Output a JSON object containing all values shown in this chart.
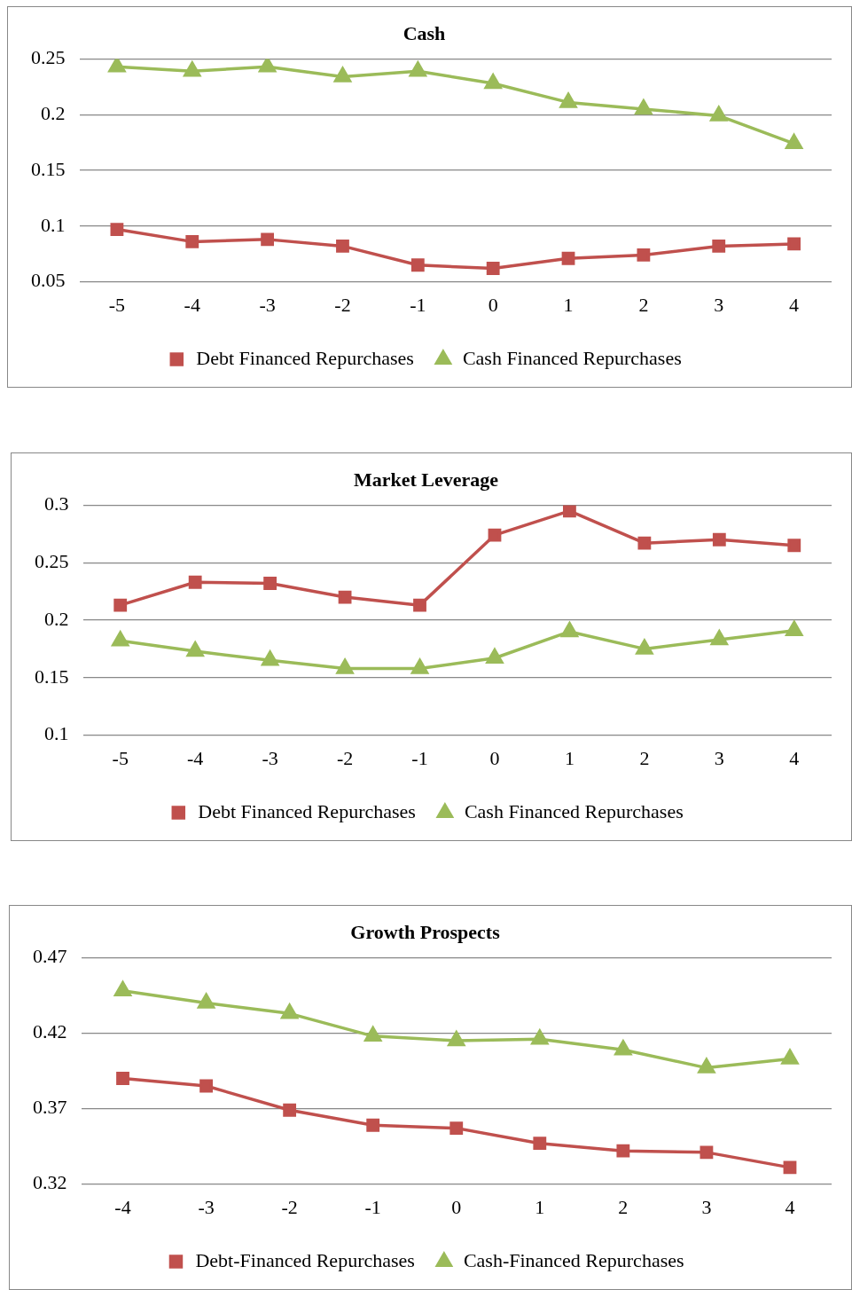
{
  "chart_data": [
    {
      "type": "line",
      "title": "Cash",
      "categories": [
        "-5",
        "-4",
        "-3",
        "-2",
        "-1",
        "0",
        "1",
        "2",
        "3",
        "4"
      ],
      "series": [
        {
          "name": "Debt Financed Repurchases",
          "color": "#c0504d",
          "marker": "square",
          "values": [
            0.097,
            0.086,
            0.088,
            0.082,
            0.065,
            0.062,
            0.071,
            0.074,
            0.082,
            0.084
          ]
        },
        {
          "name": "Cash Financed Repurchases",
          "color": "#9bbb59",
          "marker": "triangle",
          "values": [
            0.243,
            0.239,
            0.243,
            0.234,
            0.239,
            0.228,
            0.211,
            0.205,
            0.199,
            0.174
          ]
        }
      ],
      "ylim": [
        0.05,
        0.25
      ],
      "yticks": [
        0.05,
        0.1,
        0.15,
        0.2,
        0.25
      ],
      "grid": "y",
      "legend": "bottom"
    },
    {
      "type": "line",
      "title": "Market Leverage",
      "categories": [
        "-5",
        "-4",
        "-3",
        "-2",
        "-1",
        "0",
        "1",
        "2",
        "3",
        "4"
      ],
      "series": [
        {
          "name": "Debt Financed Repurchases",
          "color": "#c0504d",
          "marker": "square",
          "values": [
            0.213,
            0.233,
            0.232,
            0.22,
            0.213,
            0.274,
            0.295,
            0.267,
            0.27,
            0.265
          ]
        },
        {
          "name": "Cash Financed Repurchases",
          "color": "#9bbb59",
          "marker": "triangle",
          "values": [
            0.182,
            0.173,
            0.165,
            0.158,
            0.158,
            0.167,
            0.19,
            0.175,
            0.183,
            0.191
          ]
        }
      ],
      "ylim": [
        0.1,
        0.3
      ],
      "yticks": [
        0.1,
        0.15,
        0.2,
        0.25,
        0.3
      ],
      "grid": "y",
      "legend": "bottom"
    },
    {
      "type": "line",
      "title": "Growth Prospects",
      "categories": [
        "-4",
        "-3",
        "-2",
        "-1",
        "0",
        "1",
        "2",
        "3",
        "4"
      ],
      "series": [
        {
          "name": "Debt-Financed Repurchases",
          "color": "#c0504d",
          "marker": "square",
          "values": [
            0.39,
            0.385,
            0.369,
            0.359,
            0.357,
            0.347,
            0.342,
            0.341,
            0.331
          ]
        },
        {
          "name": "Cash-Financed Repurchases",
          "color": "#9bbb59",
          "marker": "triangle",
          "values": [
            0.448,
            0.44,
            0.433,
            0.418,
            0.415,
            0.416,
            0.409,
            0.397,
            0.403
          ]
        }
      ],
      "ylim": [
        0.32,
        0.47
      ],
      "yticks": [
        0.32,
        0.37,
        0.42,
        0.47
      ],
      "grid": "y",
      "legend": "bottom"
    }
  ]
}
